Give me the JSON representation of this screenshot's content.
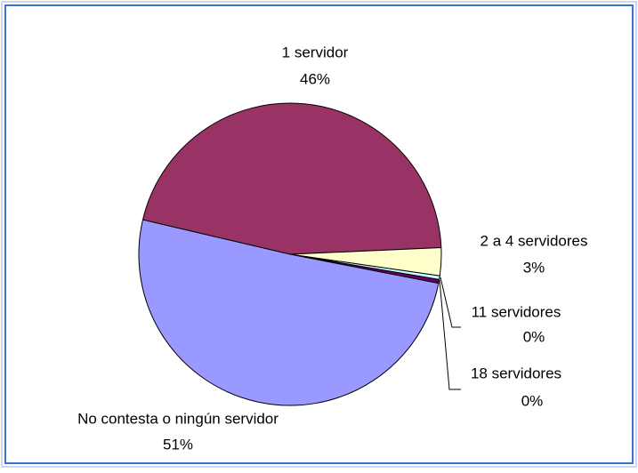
{
  "chart_data": {
    "type": "pie",
    "categories": [
      "1 servidor",
      "2 a 4 servidores",
      "11 servidores",
      "18 servidores",
      "No contesta o ningún servidor"
    ],
    "values": [
      46,
      3,
      0.4,
      0.4,
      51
    ],
    "value_labels": [
      "46%",
      "3%",
      "0%",
      "0%",
      "51%"
    ],
    "colors": [
      "#993366",
      "#ffffcc",
      "#ccffff",
      "#660066",
      "#9999ff"
    ]
  }
}
